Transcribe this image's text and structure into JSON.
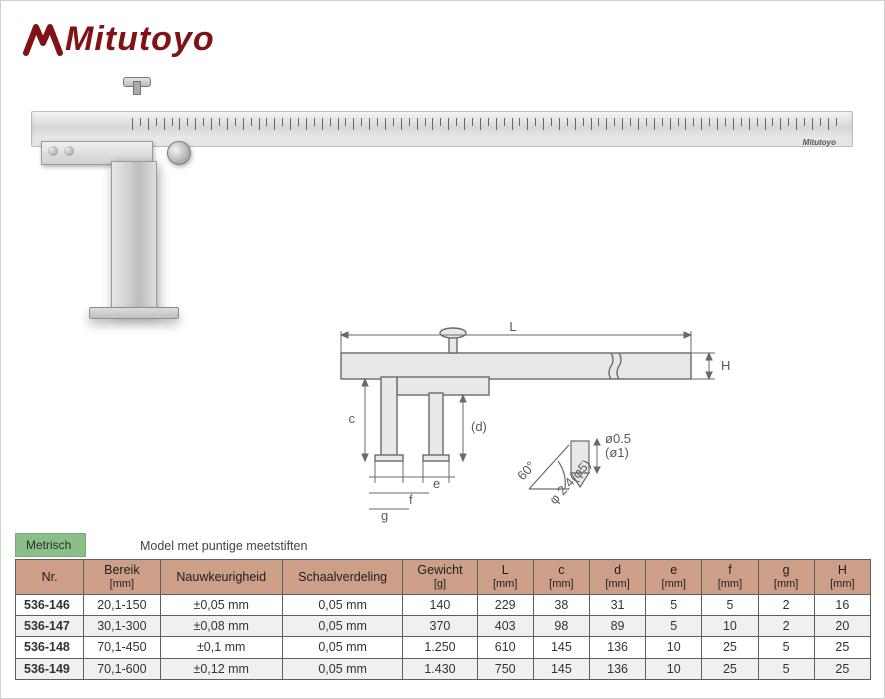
{
  "brand": {
    "name": "Mitutoyo",
    "color": "#7f1316"
  },
  "technical_drawing": {
    "dims": {
      "L": "L",
      "H": "H",
      "c": "c",
      "d": "(d)",
      "e": "e",
      "f": "f",
      "g": "g"
    },
    "angle_label": "60°",
    "phi_label": "φ 2.4(φ5)",
    "dia_label_1": "ø0.5",
    "dia_label_2": "(ø1)"
  },
  "table": {
    "units_tag": "Metrisch",
    "model_note": "Model met puntige meetstiften",
    "headers": {
      "nr": "Nr.",
      "bereik": {
        "label": "Bereik",
        "unit": "[mm]"
      },
      "nauwkeurigheid": "Nauwkeurigheid",
      "schaalverdeling": "Schaalverdeling",
      "gewicht": {
        "label": "Gewicht",
        "unit": "[g]"
      },
      "L": {
        "label": "L",
        "unit": "[mm]"
      },
      "c": {
        "label": "c",
        "unit": "[mm]"
      },
      "d": {
        "label": "d",
        "unit": "[mm]"
      },
      "e": {
        "label": "e",
        "unit": "[mm]"
      },
      "f": {
        "label": "f",
        "unit": "[mm]"
      },
      "g": {
        "label": "g",
        "unit": "[mm]"
      },
      "H": {
        "label": "H",
        "unit": "[mm]"
      }
    },
    "rows": [
      {
        "nr": "536-146",
        "bereik": "20,1-150",
        "nauw": "±0,05 mm",
        "schaal": "0,05 mm",
        "gew": "140",
        "L": "229",
        "c": "38",
        "d": "31",
        "e": "5",
        "f": "5",
        "g": "2",
        "H": "16"
      },
      {
        "nr": "536-147",
        "bereik": "30,1-300",
        "nauw": "±0,08 mm",
        "schaal": "0,05 mm",
        "gew": "370",
        "L": "403",
        "c": "98",
        "d": "89",
        "e": "5",
        "f": "10",
        "g": "2",
        "H": "20"
      },
      {
        "nr": "536-148",
        "bereik": "70,1-450",
        "nauw": "±0,1 mm",
        "schaal": "0,05 mm",
        "gew": "1.250",
        "L": "610",
        "c": "145",
        "d": "136",
        "e": "10",
        "f": "25",
        "g": "5",
        "H": "25"
      },
      {
        "nr": "536-149",
        "bereik": "70,1-600",
        "nauw": "±0,12 mm",
        "schaal": "0,05 mm",
        "gew": "1.430",
        "L": "750",
        "c": "145",
        "d": "136",
        "e": "10",
        "f": "25",
        "g": "5",
        "H": "25"
      }
    ],
    "colors": {
      "header_bg": "#cd9f89",
      "tag_bg": "#8bbf88",
      "row_even_bg": "#f0f0ee",
      "row_odd_bg": "#ffffff",
      "border": "#5e5e5e"
    }
  }
}
